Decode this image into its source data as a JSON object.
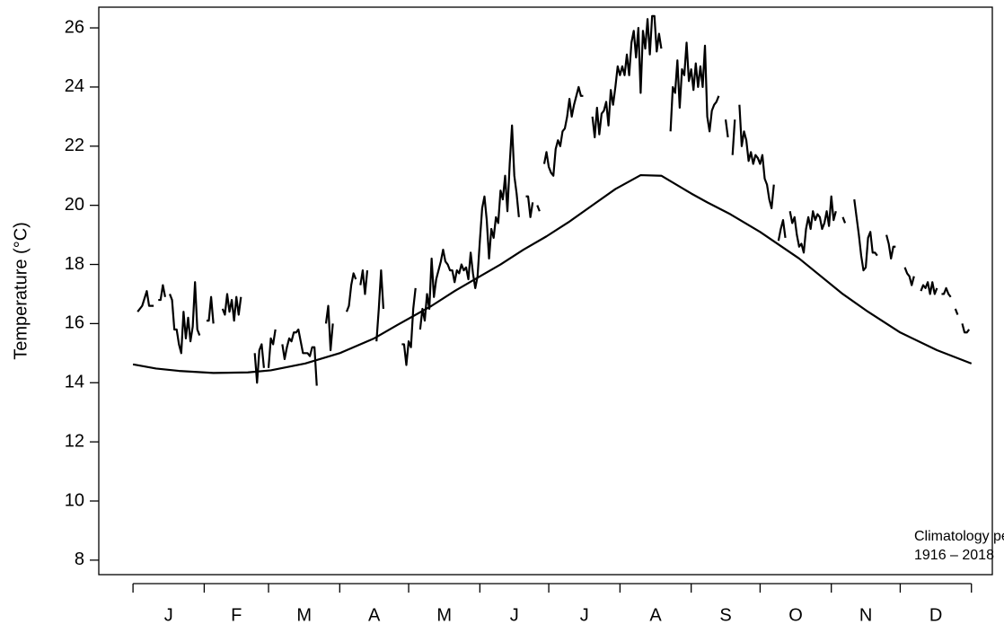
{
  "chart_data": {
    "type": "line",
    "y_label": "Temperature (°C)",
    "annotation": [
      "Climatology period",
      "1916 – 2018"
    ],
    "xlim": [
      -14.9,
      374.1
    ],
    "ylim": [
      7.51,
      26.7
    ],
    "yticks": [
      8,
      10,
      12,
      14,
      16,
      18,
      20,
      22,
      24,
      26
    ],
    "xticks": [
      0,
      31,
      59,
      90,
      120,
      151,
      181,
      212,
      243,
      273,
      304,
      334,
      365
    ],
    "xlabels": [
      {
        "value": 15.5,
        "label": "J"
      },
      {
        "value": 45,
        "label": "F"
      },
      {
        "value": 74.5,
        "label": "M"
      },
      {
        "value": 105,
        "label": "A"
      },
      {
        "value": 135.5,
        "label": "M"
      },
      {
        "value": 166,
        "label": "J"
      },
      {
        "value": 196.5,
        "label": "J"
      },
      {
        "value": 227.5,
        "label": "A"
      },
      {
        "value": 258,
        "label": "S"
      },
      {
        "value": 288.5,
        "label": "O"
      },
      {
        "value": 319,
        "label": "N"
      },
      {
        "value": 349.5,
        "label": "D"
      }
    ],
    "series": [
      {
        "color": "#000000",
        "x": [
          2,
          4,
          6,
          7,
          9,
          10,
          11,
          12,
          13,
          14,
          15,
          16,
          17,
          18,
          19,
          20,
          21,
          22,
          23,
          24,
          25,
          26,
          27,
          28,
          29,
          30,
          32,
          33,
          34,
          35,
          36,
          39,
          40,
          41,
          42,
          43,
          44,
          45,
          46,
          47,
          48,
          53,
          54,
          55,
          56,
          57,
          58,
          59,
          60,
          61,
          62,
          63,
          65,
          66,
          67,
          68,
          69,
          70,
          71,
          72,
          73,
          74,
          75,
          76,
          77,
          78,
          79,
          80,
          81,
          84,
          85,
          86,
          87,
          88,
          93,
          94,
          95,
          96,
          97,
          98,
          99,
          100,
          101,
          102,
          103,
          106,
          107,
          108,
          109,
          110,
          117,
          118,
          119,
          120,
          121,
          122,
          123,
          124,
          125,
          126,
          127,
          128,
          129,
          130,
          131,
          132,
          133,
          134,
          135,
          136,
          137,
          138,
          139,
          140,
          141,
          142,
          143,
          144,
          145,
          146,
          147,
          148,
          149,
          150,
          151,
          152,
          153,
          154,
          155,
          156,
          157,
          158,
          159,
          160,
          161,
          162,
          163,
          164,
          165,
          166,
          167,
          168,
          169,
          171,
          172,
          173,
          174,
          175,
          176,
          177,
          178,
          179,
          180,
          181,
          182,
          183,
          184,
          185,
          186,
          187,
          188,
          189,
          190,
          191,
          192,
          193,
          194,
          195,
          196,
          197,
          200,
          201,
          202,
          203,
          204,
          205,
          206,
          207,
          208,
          209,
          210,
          211,
          212,
          213,
          214,
          215,
          216,
          217,
          218,
          219,
          220,
          221,
          222,
          223,
          224,
          225,
          226,
          227,
          228,
          229,
          230,
          231,
          234,
          235,
          236,
          237,
          238,
          239,
          240,
          241,
          242,
          243,
          244,
          245,
          246,
          247,
          248,
          249,
          250,
          251,
          252,
          253,
          254,
          255,
          256,
          258,
          259,
          260,
          261,
          262,
          263,
          264,
          265,
          266,
          267,
          268,
          269,
          270,
          271,
          272,
          273,
          274,
          275,
          276,
          277,
          278,
          279,
          280,
          281,
          282,
          283,
          284,
          285,
          286,
          287,
          288,
          289,
          290,
          291,
          292,
          293,
          294,
          295,
          296,
          297,
          298,
          299,
          300,
          301,
          302,
          303,
          304,
          305,
          306,
          307,
          309,
          310,
          311,
          314,
          315,
          316,
          317,
          318,
          319,
          320,
          321,
          322,
          323,
          324,
          325,
          328,
          329,
          330,
          331,
          332,
          333,
          336,
          337,
          338,
          339,
          340,
          341,
          343,
          344,
          345,
          346,
          347,
          348,
          349,
          350,
          351,
          352,
          353,
          354,
          355,
          356,
          357,
          358,
          359,
          360,
          361,
          362,
          363,
          364
        ],
        "values": [
          16.4,
          16.6,
          17.1,
          16.6,
          16.6,
          null,
          16.8,
          16.8,
          17.3,
          16.9,
          null,
          17.0,
          16.8,
          15.8,
          15.8,
          15.3,
          15.0,
          16.4,
          15.5,
          16.2,
          15.4,
          15.9,
          17.4,
          15.8,
          15.6,
          null,
          16.1,
          16.1,
          16.9,
          16.0,
          null,
          16.5,
          16.3,
          17.0,
          16.4,
          16.8,
          16.1,
          16.9,
          16.3,
          16.9,
          null,
          15.0,
          14.0,
          15.1,
          15.3,
          14.5,
          null,
          14.5,
          15.5,
          15.3,
          15.8,
          null,
          15.3,
          14.8,
          15.2,
          15.5,
          15.4,
          15.7,
          15.7,
          15.8,
          15.4,
          15.0,
          15.0,
          15.0,
          14.9,
          15.2,
          15.2,
          13.9,
          null,
          16.0,
          16.6,
          15.1,
          16.0,
          null,
          16.4,
          16.6,
          17.3,
          17.7,
          17.5,
          null,
          17.3,
          17.8,
          17.0,
          17.8,
          null,
          15.4,
          16.5,
          17.8,
          16.5,
          null,
          15.3,
          15.3,
          14.6,
          15.4,
          15.2,
          16.5,
          17.2,
          null,
          15.8,
          16.5,
          16.1,
          17.0,
          16.5,
          18.2,
          16.9,
          17.5,
          17.8,
          18.1,
          18.5,
          18.1,
          18.0,
          17.8,
          17.8,
          17.4,
          17.8,
          17.7,
          18.0,
          17.8,
          17.9,
          17.5,
          18.4,
          17.7,
          17.2,
          17.6,
          18.8,
          19.9,
          20.3,
          19.5,
          18.2,
          19.2,
          18.9,
          19.6,
          19.4,
          20.5,
          20.2,
          21.0,
          19.8,
          21.4,
          22.7,
          21.0,
          20.4,
          19.6,
          null,
          20.3,
          20.3,
          19.6,
          20.1,
          null,
          20.0,
          19.8,
          null,
          21.4,
          21.8,
          21.3,
          21.1,
          21.0,
          21.9,
          22.2,
          22.0,
          22.5,
          22.6,
          23.0,
          23.6,
          23.0,
          23.4,
          23.7,
          24.0,
          23.7,
          23.7,
          null,
          23.0,
          22.3,
          23.3,
          22.4,
          23.1,
          23.2,
          23.5,
          22.7,
          23.9,
          23.4,
          24.0,
          24.7,
          24.4,
          24.7,
          24.4,
          25.1,
          24.4,
          25.5,
          25.9,
          25.0,
          26.0,
          23.8,
          25.9,
          25.3,
          26.3,
          25.1,
          26.4,
          26.4,
          25.2,
          25.8,
          25.3,
          null,
          22.5,
          24.0,
          23.8,
          24.9,
          23.3,
          24.6,
          24.4,
          25.5,
          24.2,
          24.6,
          23.9,
          24.8,
          24.0,
          24.7,
          24.0,
          25.4,
          23.0,
          22.5,
          23.2,
          23.4,
          23.5,
          23.7,
          null,
          22.9,
          22.3,
          null,
          21.7,
          22.9,
          null,
          23.4,
          22.0,
          22.5,
          22.2,
          21.5,
          21.8,
          21.4,
          21.7,
          21.6,
          21.4,
          21.7,
          20.9,
          20.7,
          20.2,
          19.9,
          20.7,
          null,
          18.8,
          19.2,
          19.5,
          18.9,
          null,
          19.8,
          19.4,
          19.6,
          19.0,
          18.6,
          18.7,
          18.4,
          19.2,
          19.6,
          19.2,
          19.8,
          19.5,
          19.7,
          19.6,
          19.2,
          19.4,
          19.8,
          19.3,
          20.3,
          19.5,
          19.8,
          null,
          19.6,
          19.4,
          null,
          20.2,
          19.6,
          19.0,
          18.3,
          17.8,
          17.9,
          18.9,
          19.1,
          18.4,
          18.4,
          18.3,
          null,
          19.0,
          18.7,
          18.2,
          18.6,
          18.6,
          null,
          17.9,
          17.7,
          17.6,
          17.3,
          17.6,
          null,
          17.1,
          17.3,
          17.2,
          17.4,
          17.0,
          17.4,
          17.0,
          17.2,
          null,
          17.0,
          17.0,
          17.2,
          17.0,
          16.9,
          null,
          16.5,
          16.3,
          null,
          16.0,
          15.7,
          15.7,
          15.8
        ]
      },
      {
        "color": "#000000",
        "x": [
          0,
          10,
          20,
          35,
          50,
          60,
          75,
          90,
          105,
          115,
          130,
          140,
          150,
          160,
          170,
          180,
          190,
          200,
          210,
          221,
          230,
          243,
          250,
          260,
          273,
          290,
          309,
          320,
          334,
          350,
          365
        ],
        "values": [
          14.62,
          14.48,
          14.4,
          14.33,
          14.35,
          14.42,
          14.65,
          15.0,
          15.5,
          15.95,
          16.6,
          17.1,
          17.55,
          18.0,
          18.5,
          18.95,
          19.45,
          20.0,
          20.55,
          21.02,
          21.0,
          20.4,
          20.1,
          19.7,
          19.1,
          18.2,
          17.0,
          16.4,
          15.7,
          15.1,
          14.65
        ]
      }
    ]
  }
}
